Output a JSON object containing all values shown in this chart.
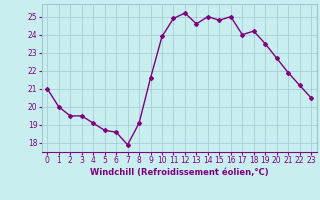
{
  "x": [
    0,
    1,
    2,
    3,
    4,
    5,
    6,
    7,
    8,
    9,
    10,
    11,
    12,
    13,
    14,
    15,
    16,
    17,
    18,
    19,
    20,
    21,
    22,
    23
  ],
  "y": [
    21.0,
    20.0,
    19.5,
    19.5,
    19.1,
    18.7,
    18.6,
    17.9,
    19.1,
    21.6,
    23.9,
    24.9,
    25.2,
    24.6,
    25.0,
    24.8,
    25.0,
    24.0,
    24.2,
    23.5,
    22.7,
    21.9,
    21.2,
    20.5
  ],
  "line_color": "#800080",
  "marker": "D",
  "marker_size": 2,
  "bg_color": "#c8eef0",
  "grid_color": "#a0c8d0",
  "xlabel": "Windchill (Refroidissement éolien,°C)",
  "xlabel_color": "#800080",
  "tick_color": "#800080",
  "ylim": [
    17.5,
    25.7
  ],
  "xlim": [
    -0.5,
    23.5
  ],
  "yticks": [
    18,
    19,
    20,
    21,
    22,
    23,
    24,
    25
  ],
  "xticks": [
    0,
    1,
    2,
    3,
    4,
    5,
    6,
    7,
    8,
    9,
    10,
    11,
    12,
    13,
    14,
    15,
    16,
    17,
    18,
    19,
    20,
    21,
    22,
    23
  ],
  "tick_fontsize": 5.5,
  "xlabel_fontsize": 6.0,
  "linewidth": 1.0
}
